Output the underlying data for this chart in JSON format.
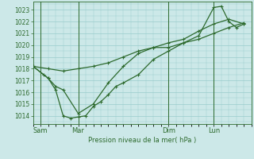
{
  "background_color": "#cce8e8",
  "grid_color": "#99cccc",
  "line_color": "#2d6a2d",
  "marker_color": "#2d6a2d",
  "xlabel": "Pression niveau de la mer( hPa )",
  "ylim": [
    1013.3,
    1023.7
  ],
  "xlim": [
    0,
    14.5
  ],
  "yticks": [
    1014,
    1015,
    1016,
    1017,
    1018,
    1019,
    1020,
    1021,
    1022,
    1023
  ],
  "xtick_labels": [
    "Sam",
    "Mar",
    "Dim",
    "Lun"
  ],
  "xtick_positions": [
    0.5,
    3.0,
    9.0,
    12.0
  ],
  "lines": [
    {
      "x": [
        0.0,
        1.0,
        2.0,
        3.0,
        4.0,
        5.0,
        6.0,
        7.0,
        8.0,
        9.0,
        10.0,
        11.0,
        12.0,
        13.0,
        14.0
      ],
      "y": [
        1018.2,
        1018.0,
        1017.8,
        1018.0,
        1018.2,
        1018.5,
        1019.0,
        1019.5,
        1019.8,
        1019.8,
        1020.2,
        1020.5,
        1021.0,
        1021.5,
        1021.9
      ]
    },
    {
      "x": [
        0.0,
        0.7,
        1.0,
        1.5,
        2.0,
        2.5,
        3.0,
        3.5,
        4.0,
        4.5,
        5.0,
        5.5,
        6.0,
        7.0,
        8.0,
        9.0,
        10.0,
        11.0,
        12.0,
        12.5,
        13.0,
        13.5,
        14.0
      ],
      "y": [
        1018.2,
        1017.5,
        1017.2,
        1016.2,
        1014.0,
        1013.8,
        1013.9,
        1014.0,
        1014.8,
        1015.2,
        1015.8,
        1016.5,
        1016.8,
        1017.5,
        1018.8,
        1019.5,
        1020.2,
        1020.8,
        1023.2,
        1023.3,
        1022.0,
        1021.5,
        1021.8
      ]
    },
    {
      "x": [
        0.0,
        1.0,
        1.5,
        2.0,
        3.0,
        4.0,
        5.0,
        6.0,
        7.0,
        8.0,
        9.0,
        10.0,
        11.0,
        12.0,
        13.0,
        14.0
      ],
      "y": [
        1018.2,
        1017.2,
        1016.5,
        1016.2,
        1014.2,
        1015.0,
        1016.8,
        1018.2,
        1019.3,
        1019.8,
        1020.2,
        1020.5,
        1021.2,
        1021.8,
        1022.2,
        1021.8
      ]
    }
  ],
  "vlines": [
    0.5,
    3.0,
    9.0,
    12.0
  ],
  "figsize": [
    3.2,
    2.0
  ],
  "dpi": 100
}
